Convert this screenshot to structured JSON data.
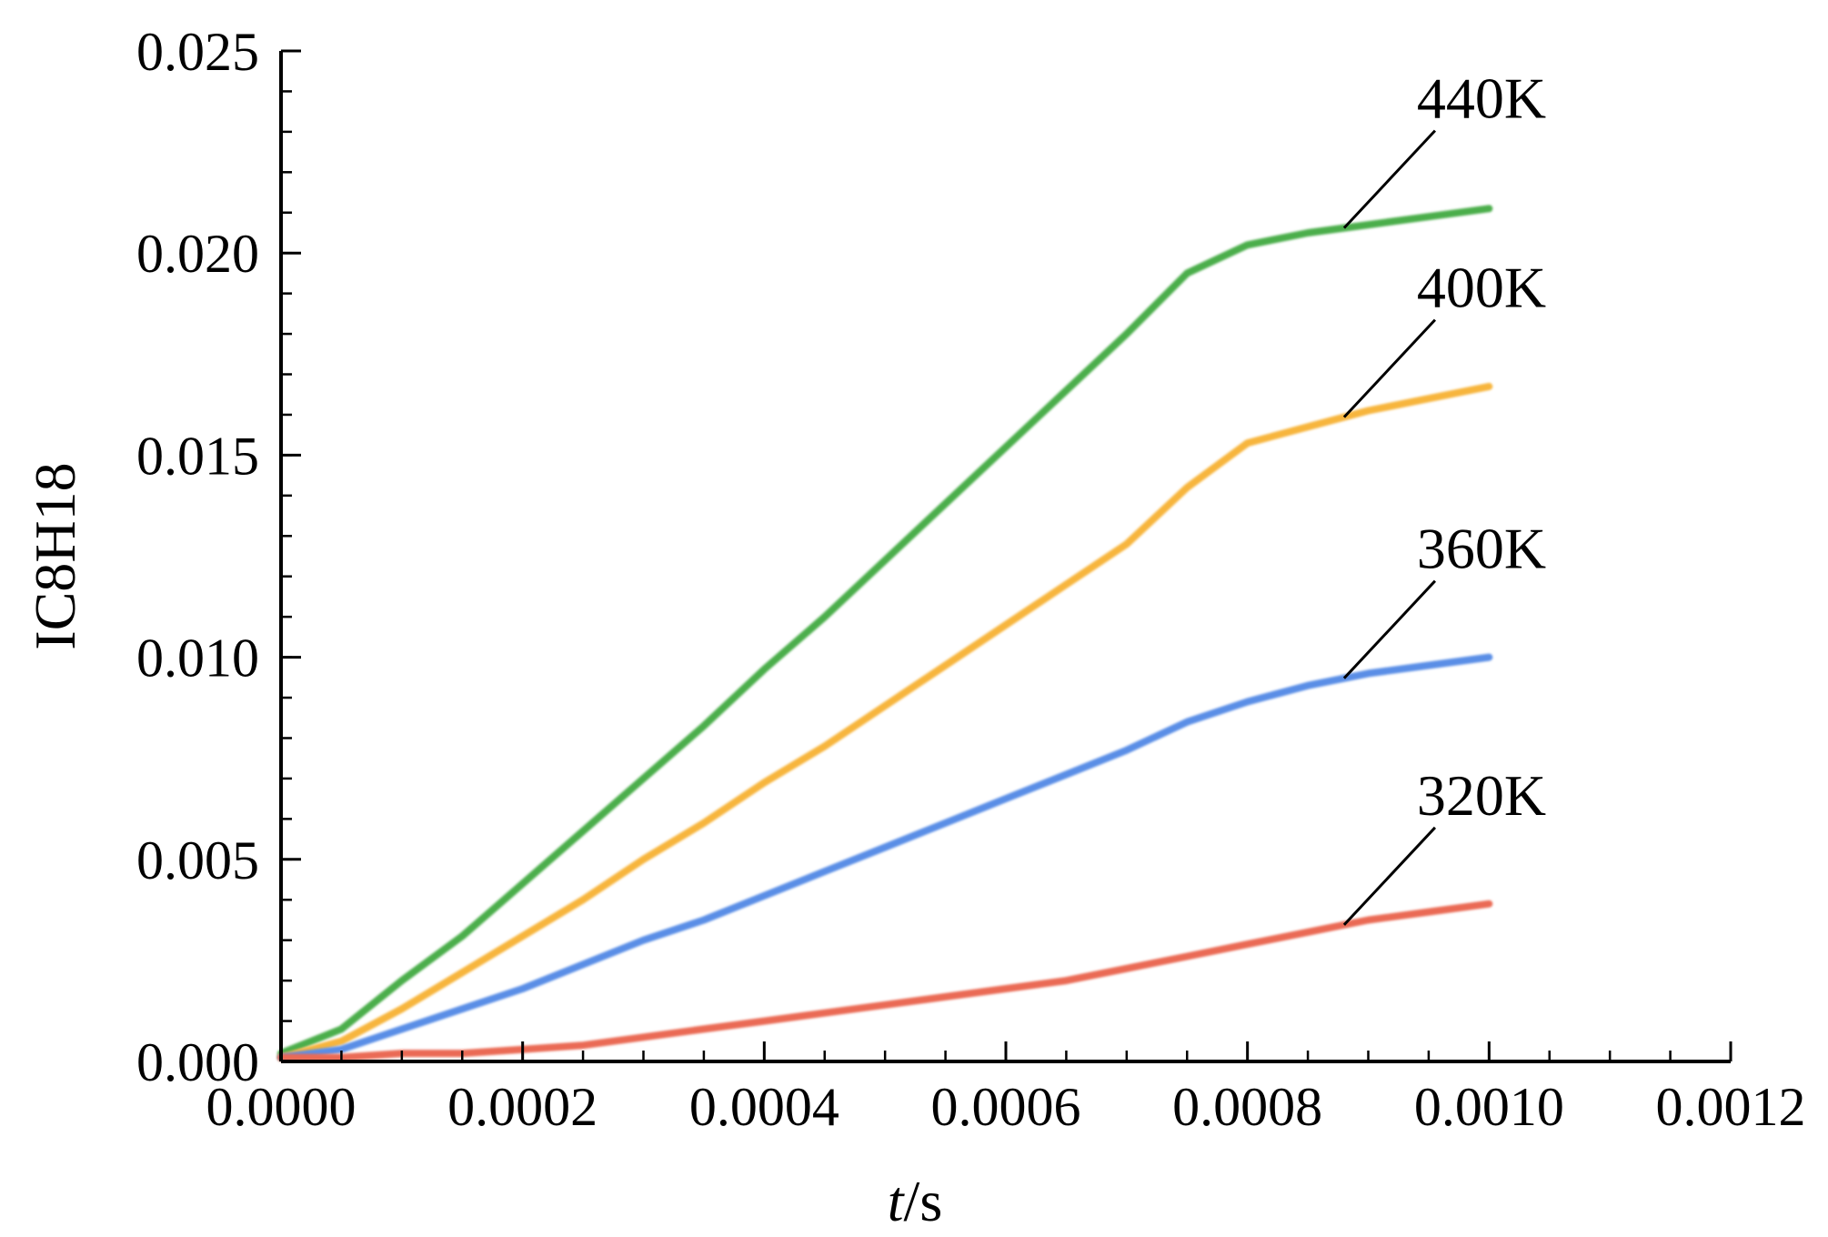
{
  "chart_data": {
    "type": "line",
    "title": "",
    "xlabel_italic": "t",
    "xlabel_unit": "/s",
    "ylabel": "IC8H18",
    "xlim": [
      0,
      0.0012
    ],
    "ylim": [
      0,
      0.025
    ],
    "x_ticks": [
      "0.0000",
      "0.0002",
      "0.0004",
      "0.0006",
      "0.0008",
      "0.0010",
      "0.0012"
    ],
    "y_ticks": [
      "0.000",
      "0.005",
      "0.010",
      "0.015",
      "0.020",
      "0.025"
    ],
    "x_minor_step": 5e-05,
    "y_minor_step": 0.001,
    "grid": false,
    "legend": "inline leader-line labels at right",
    "label_x": 0.00088,
    "x": [
      0,
      5e-05,
      0.0001,
      0.00015,
      0.0002,
      0.00025,
      0.0003,
      0.00035,
      0.0004,
      0.00045,
      0.0005,
      0.00055,
      0.0006,
      0.00065,
      0.0007,
      0.00075,
      0.0008,
      0.00085,
      0.0009,
      0.00095,
      0.001
    ],
    "series": [
      {
        "name": "440K",
        "color": "#4cae4c",
        "values": [
          0.0002,
          0.0008,
          0.002,
          0.0031,
          0.0044,
          0.0057,
          0.007,
          0.0083,
          0.0097,
          0.011,
          0.0124,
          0.0138,
          0.0152,
          0.0166,
          0.018,
          0.0195,
          0.0202,
          0.0205,
          0.0207,
          0.0209,
          0.0211
        ]
      },
      {
        "name": "400K",
        "color": "#f7b53c",
        "values": [
          0.0001,
          0.0005,
          0.0013,
          0.0022,
          0.0031,
          0.004,
          0.005,
          0.0059,
          0.0069,
          0.0078,
          0.0088,
          0.0098,
          0.0108,
          0.0118,
          0.0128,
          0.0142,
          0.0153,
          0.0157,
          0.0161,
          0.0164,
          0.0167
        ]
      },
      {
        "name": "360K",
        "color": "#5a8ee6",
        "values": [
          0.0001,
          0.0003,
          0.0008,
          0.0013,
          0.0018,
          0.0024,
          0.003,
          0.0035,
          0.0041,
          0.0047,
          0.0053,
          0.0059,
          0.0065,
          0.0071,
          0.0077,
          0.0084,
          0.0089,
          0.0093,
          0.0096,
          0.0098,
          0.01
        ]
      },
      {
        "name": "320K",
        "color": "#ea6a55",
        "values": [
          0.0001,
          0.0001,
          0.0002,
          0.0002,
          0.0003,
          0.0004,
          0.0006,
          0.0008,
          0.001,
          0.0012,
          0.0014,
          0.0016,
          0.0018,
          0.002,
          0.0023,
          0.0026,
          0.0029,
          0.0032,
          0.0035,
          0.0037,
          0.0039
        ]
      }
    ]
  }
}
